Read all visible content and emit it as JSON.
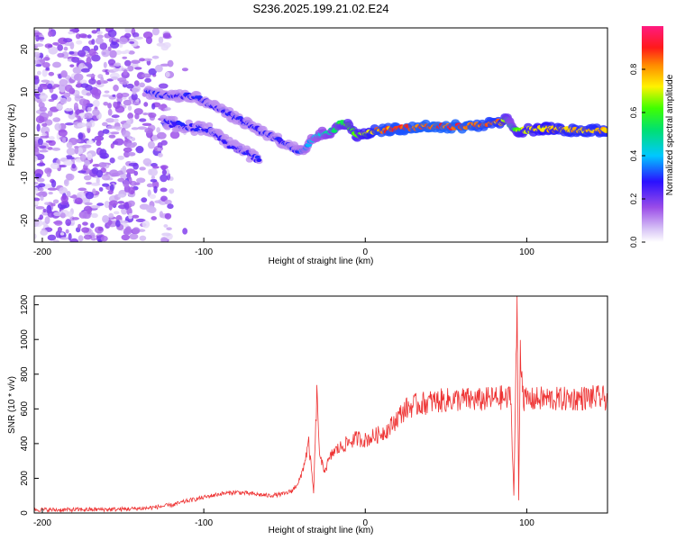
{
  "figure_title": "S236.2025.199.21.02.E24",
  "colors": {
    "signal": "#ee3333",
    "low": "#a070e8",
    "mid": "#00c0ff",
    "high": "#ff2030",
    "frame": "#000000"
  },
  "chart_data": [
    {
      "type": "heatmap",
      "title": "",
      "xlabel": "Height of straight line (km)",
      "ylabel": "Frequency (Hz)",
      "xlim": [
        -205,
        150
      ],
      "ylim": [
        -25,
        25
      ],
      "x_ticks": [
        -200,
        -100,
        0,
        100
      ],
      "y_ticks": [
        -20,
        -10,
        0,
        10,
        20
      ],
      "colorbar": {
        "label": "Normalized spectral amplitude",
        "range": [
          0,
          1
        ],
        "ticks": [
          "0.0",
          "0.2",
          "0.4",
          "0.6",
          "0.8"
        ],
        "colormap": "rainbow (white-violet-blue-cyan-green-yellow-red-magenta)"
      },
      "noise_region": {
        "x": [
          -205,
          -120
        ],
        "amplitude": 0.15
      },
      "ridge": {
        "x": [
          -135,
          -120,
          -105,
          -95,
          -85,
          -75,
          -65,
          -55,
          -45,
          -40,
          -35,
          -30,
          -25,
          -20,
          -15,
          -10,
          -5,
          0,
          5,
          10,
          20,
          40,
          60,
          75,
          85,
          88,
          90,
          95,
          110,
          130,
          150
        ],
        "y": [
          10,
          9,
          9,
          7,
          5,
          3,
          1,
          -1,
          -3,
          -4,
          -2,
          0,
          0.5,
          1,
          3,
          2,
          0,
          0,
          1,
          1,
          1.5,
          2,
          2,
          2.5,
          3,
          4,
          2,
          1,
          1.5,
          1,
          1
        ],
        "amplitude": [
          0.3,
          0.3,
          0.3,
          0.3,
          0.3,
          0.3,
          0.3,
          0.3,
          0.3,
          0.35,
          0.4,
          0.45,
          0.5,
          0.55,
          0.6,
          0.65,
          0.7,
          0.75,
          0.85,
          0.9,
          0.92,
          0.95,
          0.95,
          0.9,
          0.85,
          0.6,
          0.5,
          0.7,
          0.8,
          0.85,
          0.85
        ]
      },
      "secondary_ridge": {
        "x": [
          -125,
          -110,
          -95,
          -85,
          -75,
          -65
        ],
        "y": [
          3,
          2,
          1,
          -2,
          -4,
          -6
        ],
        "amplitude": [
          0.3,
          0.3,
          0.3,
          0.3,
          0.3,
          0.3
        ]
      }
    },
    {
      "type": "line",
      "title": "",
      "xlabel": "Height of straight line (km)",
      "ylabel": "SNR (10 * v/v)",
      "xlim": [
        -205,
        150
      ],
      "ylim": [
        0,
        1250
      ],
      "x_ticks": [
        -200,
        -100,
        0,
        100
      ],
      "y_ticks": [
        0,
        200,
        400,
        600,
        800,
        1000,
        1200
      ],
      "grid": false,
      "series": [
        {
          "x": [
            -205,
            -190,
            -170,
            -150,
            -135,
            -120,
            -110,
            -100,
            -90,
            -80,
            -70,
            -60,
            -50,
            -45,
            -40,
            -35,
            -32,
            -30,
            -28,
            -25,
            -20,
            -15,
            -10,
            -5,
            0,
            5,
            10,
            15,
            20,
            25,
            30,
            40,
            50,
            60,
            70,
            80,
            85,
            88,
            90,
            92,
            94,
            95,
            96,
            98,
            100,
            110,
            120,
            130,
            140,
            150
          ],
          "y": [
            20,
            18,
            20,
            22,
            28,
            45,
            70,
            90,
            110,
            120,
            110,
            100,
            110,
            130,
            200,
            400,
            120,
            680,
            300,
            250,
            350,
            380,
            410,
            430,
            420,
            440,
            460,
            490,
            550,
            600,
            620,
            640,
            650,
            655,
            650,
            660,
            665,
            650,
            700,
            100,
            1200,
            80,
            950,
            660,
            650,
            660,
            655,
            660,
            665,
            660
          ]
        }
      ]
    }
  ]
}
